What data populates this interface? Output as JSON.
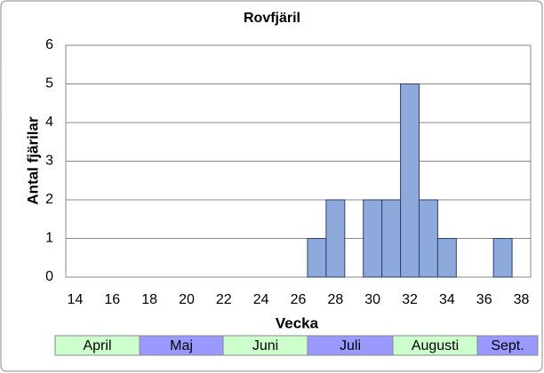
{
  "chart_data": {
    "type": "bar",
    "title": "Rovfjäril",
    "xlabel": "Vecka",
    "ylabel": "Antal fjärilar",
    "categories": [
      14,
      null,
      16,
      null,
      18,
      null,
      20,
      null,
      22,
      null,
      24,
      null,
      26,
      null,
      28,
      null,
      30,
      null,
      32,
      null,
      34,
      null,
      36,
      null,
      38
    ],
    "values": [
      0,
      0,
      0,
      0,
      0,
      0,
      0,
      0,
      0,
      0,
      0,
      0,
      0,
      1,
      2,
      0,
      2,
      2,
      5,
      2,
      1,
      0,
      0,
      1,
      0
    ],
    "color": "#8ea9db",
    "ylim": [
      0,
      6
    ],
    "yticks": [
      0,
      1,
      2,
      3,
      4,
      5,
      6
    ],
    "grid": true,
    "months": [
      {
        "name": "April",
        "color": "#ccffcc"
      },
      {
        "name": "Maj",
        "color": "#9999ff"
      },
      {
        "name": "Juni",
        "color": "#ccffcc"
      },
      {
        "name": "Juli",
        "color": "#9999ff"
      },
      {
        "name": "Augusti",
        "color": "#ccffcc"
      },
      {
        "name": "Sept.",
        "color": "#9999ff"
      }
    ]
  }
}
